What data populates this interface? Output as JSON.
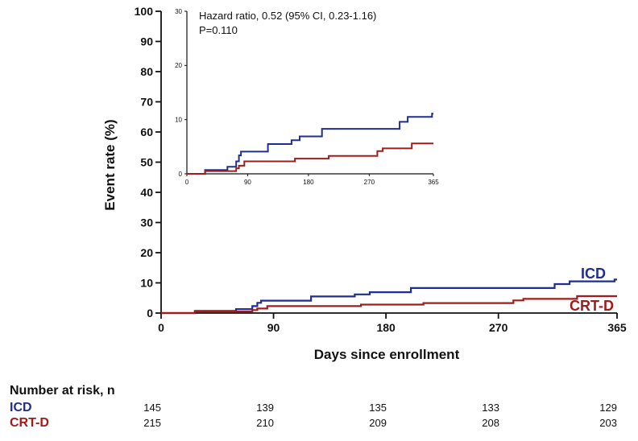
{
  "chart_data": [
    {
      "type": "line",
      "step": true,
      "xlabel": "Days since enrollment",
      "ylabel": "Event rate (%)",
      "xlim": [
        0,
        365
      ],
      "ylim": [
        0,
        100
      ],
      "x_ticks": [
        0,
        90,
        180,
        270,
        365
      ],
      "y_ticks": [
        0,
        10,
        20,
        30,
        40,
        50,
        60,
        70,
        80,
        90,
        100
      ],
      "grid": false,
      "series": [
        {
          "name": "ICD",
          "color": "#1f2e8f",
          "x": [
            0,
            27,
            60,
            73,
            77,
            80,
            120,
            155,
            167,
            200,
            315,
            327,
            363,
            365
          ],
          "y": [
            0,
            0.7,
            1.3,
            2.3,
            3.4,
            4.1,
            5.5,
            6.2,
            6.9,
            8.3,
            9.6,
            10.5,
            11.1,
            11.1
          ]
        },
        {
          "name": "CRT-D",
          "color": "#a01c1c",
          "x": [
            0,
            27,
            73,
            77,
            85,
            160,
            210,
            282,
            290,
            333,
            365
          ],
          "y": [
            0,
            0.5,
            1.0,
            1.5,
            2.3,
            2.8,
            3.3,
            4.2,
            4.7,
            5.6,
            5.6
          ]
        }
      ]
    },
    {
      "type": "line",
      "step": true,
      "inset": true,
      "xlim": [
        0,
        365
      ],
      "ylim": [
        0,
        30
      ],
      "x_ticks": [
        0,
        90,
        180,
        270,
        365
      ],
      "y_ticks": [
        0,
        10,
        20,
        30
      ],
      "annotation": [
        "Hazard ratio, 0.52 (95% CI, 0.23-1.16)",
        "P=0.110"
      ],
      "series": [
        {
          "name": "ICD",
          "color": "#1f2e8f",
          "x": [
            0,
            27,
            60,
            73,
            77,
            80,
            120,
            155,
            167,
            200,
            315,
            327,
            363,
            365
          ],
          "y": [
            0,
            0.7,
            1.3,
            2.3,
            3.4,
            4.1,
            5.5,
            6.2,
            6.9,
            8.3,
            9.6,
            10.5,
            11.1,
            11.1
          ]
        },
        {
          "name": "CRT-D",
          "color": "#a01c1c",
          "x": [
            0,
            27,
            73,
            77,
            85,
            160,
            210,
            282,
            290,
            333,
            365
          ],
          "y": [
            0,
            0.5,
            1.0,
            1.5,
            2.3,
            2.8,
            3.3,
            4.2,
            4.7,
            5.6,
            5.6
          ]
        }
      ]
    }
  ],
  "risk_table": {
    "title": "Number at risk, n",
    "rows": [
      {
        "label": "ICD",
        "color": "#1f2e8f",
        "values": [
          "145",
          "139",
          "135",
          "133",
          "129"
        ]
      },
      {
        "label": "CRT-D",
        "color": "#a01c1c",
        "values": [
          "215",
          "210",
          "209",
          "208",
          "203"
        ]
      }
    ]
  }
}
